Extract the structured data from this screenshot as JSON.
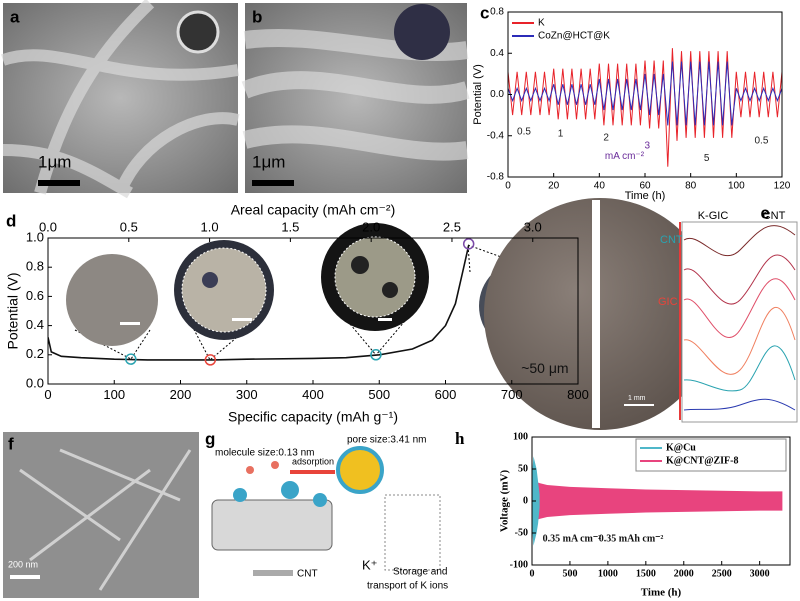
{
  "chart_data": [
    {
      "type": "line",
      "panel_label": "c",
      "xlabel": "Time (h)",
      "ylabel": "Potential (V)",
      "xlim": [
        0,
        120
      ],
      "xticks": [
        0,
        20,
        40,
        60,
        80,
        100,
        120
      ],
      "ylim": [
        -0.8,
        0.8
      ],
      "yticks": [
        -0.8,
        -0.4,
        {
          "value": 0,
          "label": "0.0"
        },
        0.4,
        0.8
      ],
      "legend": "upper left",
      "x": [
        0,
        2,
        4,
        6,
        8,
        10,
        12,
        14,
        16,
        18,
        20,
        22,
        24,
        26,
        28,
        30,
        32,
        34,
        36,
        38,
        40,
        42,
        44,
        46,
        48,
        50,
        52,
        54,
        56,
        58,
        60,
        62,
        64,
        66,
        68,
        70,
        72,
        74,
        76,
        78,
        80,
        82,
        84,
        86,
        88,
        90,
        92,
        94,
        96,
        98,
        100,
        102,
        104,
        106,
        108,
        110,
        112,
        114,
        116,
        118,
        120
      ],
      "series": [
        {
          "name": "K",
          "color": "#e8232a",
          "values": [
            0.22,
            -0.2,
            0.22,
            -0.2,
            0.22,
            -0.2,
            0.22,
            -0.2,
            0.22,
            -0.2,
            0.25,
            -0.24,
            0.25,
            -0.24,
            0.25,
            -0.24,
            0.25,
            -0.24,
            0.25,
            -0.24,
            0.3,
            -0.3,
            0.3,
            -0.3,
            0.3,
            -0.3,
            0.3,
            -0.3,
            0.3,
            -0.3,
            0.33,
            -0.33,
            0.33,
            -0.33,
            0.33,
            -0.7,
            0.45,
            -0.45,
            0.42,
            -0.42,
            0.42,
            -0.42,
            0.42,
            -0.42,
            0.42,
            -0.42,
            0.42,
            -0.42,
            0.42,
            -0.42,
            0.22,
            -0.22,
            0.22,
            -0.22,
            0.22,
            -0.22,
            0.22,
            -0.22,
            0.22,
            -0.22,
            0.22
          ]
        },
        {
          "name": "CoZn@HCT@K",
          "color": "#2b2bb8",
          "values": [
            0.06,
            -0.06,
            0.06,
            -0.06,
            0.06,
            -0.06,
            0.06,
            -0.06,
            0.06,
            -0.06,
            0.1,
            -0.1,
            0.1,
            -0.1,
            0.1,
            -0.1,
            0.1,
            -0.1,
            0.1,
            -0.1,
            0.15,
            -0.15,
            0.15,
            -0.15,
            0.15,
            -0.15,
            0.15,
            -0.15,
            0.15,
            -0.15,
            0.2,
            -0.2,
            0.2,
            -0.2,
            0.2,
            -0.3,
            0.32,
            -0.3,
            0.32,
            -0.3,
            0.32,
            -0.3,
            0.32,
            -0.3,
            0.32,
            -0.3,
            0.32,
            -0.3,
            0.32,
            -0.3,
            0.06,
            -0.06,
            0.06,
            -0.06,
            0.06,
            -0.06,
            0.06,
            -0.06,
            0.06,
            -0.06,
            0.06
          ]
        }
      ],
      "annotations": [
        {
          "text": "0.5",
          "x": 7,
          "y": -0.36,
          "color": "#222222"
        },
        {
          "text": "1",
          "x": 23,
          "y": -0.38,
          "color": "#222222"
        },
        {
          "text": "2",
          "x": 43,
          "y": -0.42,
          "color": "#222222"
        },
        {
          "text": "3",
          "x": 61,
          "y": -0.5,
          "color": "#6a2c9a"
        },
        {
          "text": "5",
          "x": 87,
          "y": -0.62,
          "color": "#222222"
        },
        {
          "text": "0.5",
          "x": 111,
          "y": -0.45,
          "color": "#222222"
        },
        {
          "text": "mA cm⁻²",
          "x": 51,
          "y": -0.6,
          "color": "#6a2c9a"
        }
      ]
    },
    {
      "type": "line",
      "panel_label": "d",
      "xlabel": "Specific capacity (mAh g⁻¹)",
      "ylabel": "Potential (V)",
      "x2label": "Areal capacity (mAh cm⁻²)",
      "xlim": [
        0,
        800
      ],
      "xticks": [
        0,
        100,
        200,
        300,
        400,
        500,
        600,
        700,
        800
      ],
      "x2lim": [
        0,
        3.28
      ],
      "x2ticks": [
        {
          "value": 0,
          "label": "0.0"
        },
        0.5,
        {
          "value": 1,
          "label": "1.0"
        },
        1.5,
        {
          "value": 2,
          "label": "2.0"
        },
        2.5,
        {
          "value": 3,
          "label": "3.0"
        }
      ],
      "ylim": [
        0,
        1
      ],
      "yticks": [
        {
          "value": 0,
          "label": "0.0"
        },
        0.2,
        0.4,
        0.6,
        0.8,
        {
          "value": 1,
          "label": "1.0"
        }
      ],
      "x": [
        0,
        5,
        20,
        50,
        100,
        150,
        200,
        250,
        300,
        400,
        450,
        500,
        550,
        580,
        600,
        615,
        625,
        635
      ],
      "series": [
        {
          "color": "#111111",
          "values": [
            0.32,
            0.22,
            0.19,
            0.18,
            0.17,
            0.165,
            0.165,
            0.165,
            0.17,
            0.175,
            0.18,
            0.2,
            0.24,
            0.3,
            0.4,
            0.55,
            0.75,
            0.95
          ]
        }
      ],
      "markers": [
        {
          "x": 125,
          "y": 0.17,
          "color": "#2aa3b0"
        },
        {
          "x": 245,
          "y": 0.165,
          "color": "#e8443a"
        },
        {
          "x": 495,
          "y": 0.2,
          "color": "#2aa3b0"
        },
        {
          "x": 635,
          "y": 0.96,
          "color": "#7b4aa8"
        }
      ],
      "annotations": [
        {
          "text": "~50 μm",
          "x": 750,
          "y": 0.1,
          "color": "#111111"
        }
      ]
    },
    {
      "type": "band",
      "panel_label": "h",
      "xlabel": "Time (h)",
      "ylabel": "Voltage (mV)",
      "xlim": [
        0,
        3400
      ],
      "xticks": [
        0,
        500,
        1000,
        1500,
        2000,
        2500,
        3000
      ],
      "ylim": [
        -100,
        100
      ],
      "yticks": [
        -100,
        -50,
        0,
        50,
        100
      ],
      "legend": "upper right",
      "series": [
        {
          "name": "K@Cu",
          "color": "#4fb7c9",
          "x": [
            0,
            20,
            40,
            60,
            80,
            100
          ],
          "values": [
            40,
            70,
            60,
            50,
            30,
            10
          ],
          "lower": [
            -40,
            -70,
            -60,
            -50,
            -35,
            -10
          ]
        },
        {
          "name": "K@CNT@ZIF-8",
          "color": "#e8447e",
          "x": [
            0,
            50,
            100,
            200,
            500,
            1000,
            1500,
            2000,
            2500,
            3000,
            3300
          ],
          "values": [
            30,
            30,
            28,
            25,
            22,
            20,
            18,
            17,
            16,
            15,
            15
          ],
          "lower": [
            -30,
            -30,
            -28,
            -25,
            -22,
            -20,
            -18,
            -17,
            -16,
            -15,
            -15
          ]
        }
      ],
      "annotations": [
        {
          "text": "0.35 mA cm⁻²",
          "x": 140,
          "y": -60,
          "color": "#111111"
        },
        {
          "text": "0.35 mAh cm⁻²",
          "x": 880,
          "y": -60,
          "color": "#111111"
        }
      ]
    }
  ],
  "panels": {
    "a": {
      "label": "a",
      "scale_bar": "1μm"
    },
    "b": {
      "label": "b",
      "scale_bar": "1μm"
    },
    "e": {
      "label": "e",
      "texts": [
        "K-GIC",
        "CNT",
        "CNT",
        "GIC"
      ],
      "scale_bar": "1 mm"
    },
    "f": {
      "label": "f",
      "scale_bar": "200 nm"
    },
    "g": {
      "label": "g",
      "texts": [
        "molecule size:0.13 nm",
        "adsorption",
        "pore size:3.41 nm",
        "Storage and",
        "transport of K ions",
        "K⁺",
        "CNT"
      ]
    }
  }
}
